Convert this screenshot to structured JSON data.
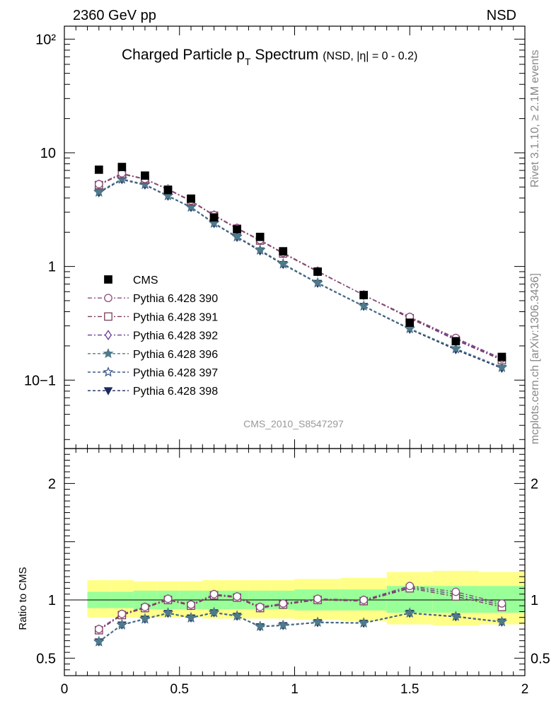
{
  "header": {
    "left": "2360 GeV pp",
    "right": "NSD"
  },
  "side": {
    "rivet": "Rivet 3.1.10, ≥ 2.1M events",
    "mcplots": "mcplots.cern.ch [arXiv:1306.3436]"
  },
  "watermark": "CMS_2010_S8547297",
  "chart_data": [
    {
      "type": "scatter",
      "title": "Charged Particle p_T Spectrum (NSD, |η| = 0 - 0.2)",
      "title_parts": {
        "main": "Charged Particle p",
        "sub": "T",
        "main2": " Spectrum",
        "small": "(NSD, |η| =   0 - 0.2)"
      },
      "xlim": [
        0,
        2
      ],
      "ylim": [
        0.025,
        130
      ],
      "yscale": "log",
      "y_tick_labels": [
        "10−1",
        "1",
        "10",
        "10²"
      ],
      "x": [
        0.15,
        0.25,
        0.35,
        0.45,
        0.55,
        0.65,
        0.75,
        0.85,
        0.95,
        1.1,
        1.3,
        1.5,
        1.7,
        1.9
      ],
      "series": [
        {
          "name": "CMS",
          "color": "#000000",
          "marker": "square-filled",
          "values": [
            7.1,
            7.5,
            6.3,
            4.7,
            3.95,
            2.7,
            2.12,
            1.82,
            1.36,
            0.9,
            0.56,
            0.32,
            0.22,
            0.16
          ]
        },
        {
          "name": "Pythia 6.428 390",
          "color": "#8a4f7d",
          "marker": "circle-open",
          "dash": "6,3,2,3",
          "values": [
            5.3,
            6.6,
            5.9,
            4.8,
            3.8,
            2.83,
            2.18,
            1.71,
            1.32,
            0.91,
            0.56,
            0.36,
            0.235,
            0.155
          ]
        },
        {
          "name": "Pythia 6.428 391",
          "color": "#7a3d5a",
          "marker": "square-open",
          "dash": "6,3,2,3",
          "values": [
            5.2,
            6.5,
            5.85,
            4.75,
            3.75,
            2.8,
            2.15,
            1.69,
            1.3,
            0.9,
            0.56,
            0.35,
            0.225,
            0.15
          ]
        },
        {
          "name": "Pythia 6.428 392",
          "color": "#6a3d9a",
          "marker": "diamond-open",
          "dash": "6,3,2,3",
          "values": [
            5.25,
            6.55,
            5.88,
            4.78,
            3.78,
            2.82,
            2.16,
            1.7,
            1.31,
            0.905,
            0.56,
            0.355,
            0.23,
            0.152
          ]
        },
        {
          "name": "Pythia 6.428 396",
          "color": "#4f7a8a",
          "marker": "star-filled",
          "dash": "4,3",
          "values": [
            4.55,
            5.9,
            5.3,
            4.2,
            3.35,
            2.42,
            1.83,
            1.4,
            1.06,
            0.72,
            0.45,
            0.285,
            0.19,
            0.13
          ]
        },
        {
          "name": "Pythia 6.428 397",
          "color": "#3d5a8a",
          "marker": "star-open",
          "dash": "4,3",
          "values": [
            4.5,
            5.85,
            5.25,
            4.18,
            3.32,
            2.4,
            1.82,
            1.39,
            1.05,
            0.715,
            0.448,
            0.283,
            0.188,
            0.129
          ]
        },
        {
          "name": "Pythia 6.428 398",
          "color": "#1c2a5a",
          "marker": "triangle-down-filled",
          "dash": "4,3",
          "values": [
            4.45,
            5.8,
            5.2,
            4.15,
            3.3,
            2.38,
            1.8,
            1.37,
            1.04,
            0.71,
            0.445,
            0.28,
            0.185,
            0.127
          ]
        }
      ],
      "legend": "middle-left"
    },
    {
      "type": "line",
      "ylabel": "Ratio to CMS",
      "xlim": [
        0,
        2
      ],
      "ylim": [
        0.35,
        2.3
      ],
      "x_tick_labels": [
        "0",
        "0.5",
        "1",
        "1.5",
        "2"
      ],
      "y_tick_labels": [
        "0.5",
        "1",
        "2"
      ],
      "reference_line": 1,
      "bands": {
        "edges": [
          0.1,
          0.2,
          0.3,
          0.4,
          0.5,
          0.6,
          0.7,
          0.8,
          0.9,
          1.0,
          1.2,
          1.4,
          1.6,
          1.8,
          2.0
        ],
        "green": [
          [
            0.93,
            1.07
          ],
          [
            0.93,
            1.07
          ],
          [
            0.92,
            1.08
          ],
          [
            0.92,
            1.08
          ],
          [
            0.92,
            1.08
          ],
          [
            0.92,
            1.08
          ],
          [
            0.92,
            1.08
          ],
          [
            0.92,
            1.08
          ],
          [
            0.92,
            1.08
          ],
          [
            0.91,
            1.09
          ],
          [
            0.91,
            1.09
          ],
          [
            0.89,
            1.12
          ],
          [
            0.89,
            1.12
          ],
          [
            0.89,
            1.12
          ]
        ],
        "yellow": [
          [
            0.85,
            1.17
          ],
          [
            0.85,
            1.17
          ],
          [
            0.85,
            1.16
          ],
          [
            0.85,
            1.16
          ],
          [
            0.85,
            1.16
          ],
          [
            0.84,
            1.17
          ],
          [
            0.84,
            1.17
          ],
          [
            0.84,
            1.17
          ],
          [
            0.84,
            1.17
          ],
          [
            0.83,
            1.18
          ],
          [
            0.82,
            1.19
          ],
          [
            0.79,
            1.24
          ],
          [
            0.78,
            1.25
          ],
          [
            0.79,
            1.24
          ]
        ],
        "green_color": "#99ff99",
        "yellow_color": "#ffff88"
      },
      "x": [
        0.15,
        0.25,
        0.35,
        0.45,
        0.55,
        0.65,
        0.75,
        0.85,
        0.95,
        1.1,
        1.3,
        1.5,
        1.7,
        1.9
      ],
      "series": [
        {
          "name": "Pythia 6.428 390",
          "color": "#8a4f7d",
          "marker": "circle-open",
          "dash": "6,3,2,3",
          "values": [
            0.75,
            0.88,
            0.94,
            1.01,
            0.96,
            1.05,
            1.03,
            0.94,
            0.97,
            1.01,
            1.0,
            1.12,
            1.07,
            0.97
          ]
        },
        {
          "name": "Pythia 6.428 391",
          "color": "#7a3d5a",
          "marker": "square-open",
          "dash": "6,3,2,3",
          "values": [
            0.74,
            0.87,
            0.93,
            1.0,
            0.95,
            1.04,
            1.02,
            0.93,
            0.96,
            1.0,
            0.99,
            1.1,
            1.03,
            0.94
          ]
        },
        {
          "name": "Pythia 6.428 392",
          "color": "#6a3d9a",
          "marker": "diamond-open",
          "dash": "6,3,2,3",
          "values": [
            0.745,
            0.875,
            0.935,
            1.005,
            0.955,
            1.045,
            1.025,
            0.935,
            0.965,
            1.005,
            0.995,
            1.11,
            1.05,
            0.955
          ]
        },
        {
          "name": "Pythia 6.428 396",
          "color": "#4f7a8a",
          "marker": "star-filled",
          "dash": "4,3",
          "values": [
            0.645,
            0.79,
            0.84,
            0.89,
            0.85,
            0.895,
            0.865,
            0.775,
            0.785,
            0.81,
            0.805,
            0.89,
            0.86,
            0.815
          ]
        },
        {
          "name": "Pythia 6.428 397",
          "color": "#3d5a8a",
          "marker": "star-open",
          "dash": "4,3",
          "values": [
            0.64,
            0.785,
            0.835,
            0.888,
            0.845,
            0.89,
            0.862,
            0.772,
            0.782,
            0.808,
            0.802,
            0.887,
            0.858,
            0.812
          ]
        },
        {
          "name": "Pythia 6.428 398",
          "color": "#1c2a5a",
          "marker": "triangle-down-filled",
          "dash": "4,3",
          "values": [
            0.64,
            0.785,
            0.835,
            0.885,
            0.845,
            0.89,
            0.86,
            0.77,
            0.78,
            0.805,
            0.8,
            0.885,
            0.855,
            0.81
          ]
        }
      ]
    }
  ]
}
